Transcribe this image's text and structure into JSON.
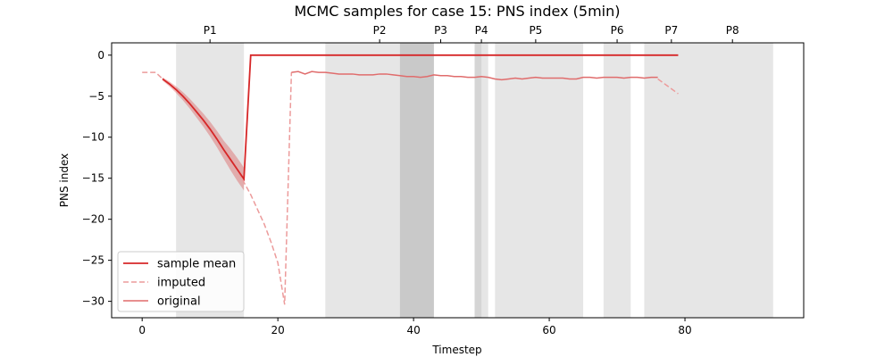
{
  "chart_data": {
    "type": "line",
    "title": "MCMC samples for case 15: PNS index (5min)",
    "xlabel": "Timestep",
    "ylabel": "PNS index",
    "xlim": [
      -4.5,
      97.5
    ],
    "ylim": [
      -32,
      1.5
    ],
    "x_ticks": [
      0,
      20,
      40,
      60,
      80
    ],
    "y_ticks": [
      0,
      -5,
      -10,
      -15,
      -20,
      -25,
      -30
    ],
    "grid": false,
    "legend_position": "lower-left",
    "legend": [
      "sample mean",
      "imputed",
      "original"
    ],
    "colors": {
      "sample_mean": "#d62728",
      "imputed": "#ec9b9b",
      "original": "#e06c6c",
      "band": "#d62728",
      "period": "#b0b0b0"
    },
    "periods": [
      {
        "label": "P1",
        "start": 5,
        "end": 15
      },
      {
        "label": "P2",
        "start": 27,
        "end": 43
      },
      {
        "label": "P3",
        "start": 38,
        "end": 43
      },
      {
        "label": "P4",
        "start": 49,
        "end": 51
      },
      {
        "label": "P5",
        "start": 52,
        "end": 65
      },
      {
        "label": "P6",
        "start": 68,
        "end": 72
      },
      {
        "label": "P7",
        "start": 74,
        "end": 82
      },
      {
        "label": "P8",
        "start": 82,
        "end": 93
      }
    ],
    "overlaps": [
      {
        "start": 38,
        "end": 43
      },
      {
        "start": 49,
        "end": 50
      }
    ],
    "top_labels": [
      {
        "label": "P1",
        "x": 10
      },
      {
        "label": "P2",
        "x": 35
      },
      {
        "label": "P3",
        "x": 44
      },
      {
        "label": "P4",
        "x": 50
      },
      {
        "label": "P5",
        "x": 58
      },
      {
        "label": "P6",
        "x": 70
      },
      {
        "label": "P7",
        "x": 78
      },
      {
        "label": "P8",
        "x": 87
      }
    ],
    "series": [
      {
        "name": "sample mean",
        "style": "solid",
        "x": [
          3,
          4,
          5,
          6,
          7,
          8,
          9,
          10,
          11,
          12,
          13,
          14,
          15,
          16,
          79
        ],
        "y": [
          -2.9,
          -3.5,
          -4.2,
          -5.0,
          -5.9,
          -6.9,
          -7.9,
          -9.0,
          -10.2,
          -11.5,
          -12.7,
          -13.9,
          -15.1,
          0,
          0
        ],
        "band_lower": [
          -3.1,
          -3.8,
          -4.6,
          -5.5,
          -6.5,
          -7.6,
          -8.7,
          -9.9,
          -11.2,
          -12.6,
          -14.0,
          -15.3,
          -16.5,
          0,
          0
        ],
        "band_upper": [
          -2.7,
          -3.2,
          -3.8,
          -4.5,
          -5.3,
          -6.2,
          -7.1,
          -8.1,
          -9.2,
          -10.4,
          -11.4,
          -12.5,
          -13.7,
          0,
          0
        ]
      },
      {
        "name": "imputed",
        "style": "dashed",
        "x": [
          0,
          1,
          2,
          3,
          4,
          5,
          6,
          7,
          8,
          9,
          10,
          11,
          12,
          13,
          14,
          15,
          16,
          17,
          18,
          19,
          20,
          21,
          22,
          76,
          77,
          78,
          79
        ],
        "y": [
          -2.1,
          -2.1,
          -2.1,
          -2.9,
          -3.5,
          -4.2,
          -5.0,
          -5.9,
          -6.9,
          -7.9,
          -9.0,
          -10.2,
          -11.5,
          -12.7,
          -13.9,
          -15.5,
          -17.0,
          -18.8,
          -20.6,
          -22.8,
          -25.3,
          -30.4,
          -2.1,
          -2.9,
          -3.5,
          -4.1,
          -4.7
        ]
      },
      {
        "name": "original",
        "style": "solid",
        "x": [
          22,
          23,
          24,
          25,
          26,
          27,
          28,
          29,
          30,
          31,
          32,
          33,
          34,
          35,
          36,
          37,
          38,
          39,
          40,
          41,
          42,
          43,
          44,
          45,
          46,
          47,
          48,
          49,
          50,
          51,
          52,
          53,
          54,
          55,
          56,
          57,
          58,
          59,
          60,
          61,
          62,
          63,
          64,
          65,
          66,
          67,
          68,
          69,
          70,
          71,
          72,
          73,
          74,
          75,
          76
        ],
        "y": [
          -2.1,
          -2.0,
          -2.3,
          -2.0,
          -2.1,
          -2.1,
          -2.2,
          -2.3,
          -2.3,
          -2.3,
          -2.4,
          -2.4,
          -2.4,
          -2.3,
          -2.3,
          -2.4,
          -2.5,
          -2.6,
          -2.6,
          -2.7,
          -2.6,
          -2.4,
          -2.5,
          -2.5,
          -2.6,
          -2.6,
          -2.7,
          -2.7,
          -2.6,
          -2.7,
          -2.9,
          -3.0,
          -2.9,
          -2.8,
          -2.9,
          -2.8,
          -2.7,
          -2.8,
          -2.8,
          -2.8,
          -2.8,
          -2.9,
          -2.9,
          -2.7,
          -2.7,
          -2.8,
          -2.7,
          -2.7,
          -2.7,
          -2.8,
          -2.7,
          -2.7,
          -2.8,
          -2.7,
          -2.7
        ]
      }
    ]
  }
}
